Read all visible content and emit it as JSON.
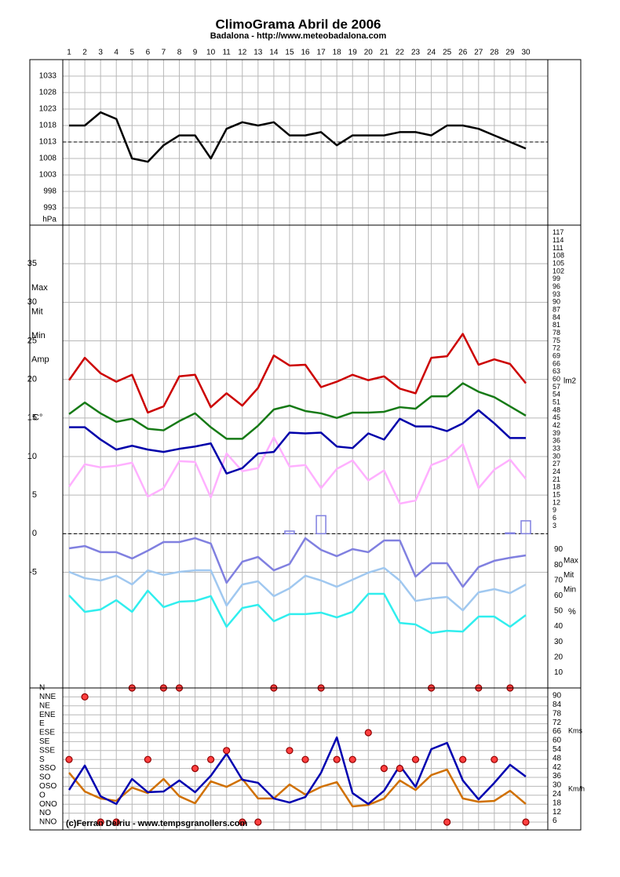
{
  "chart_data": [
    {
      "type": "line",
      "title": "ClimoGrama Abril de 2006",
      "subtitle": "Badalona - http://www.meteobadalona.com",
      "categories": [
        "1",
        "2",
        "3",
        "4",
        "5",
        "6",
        "7",
        "8",
        "9",
        "10",
        "11",
        "12",
        "13",
        "14",
        "15",
        "16",
        "17",
        "18",
        "19",
        "20",
        "21",
        "22",
        "23",
        "24",
        "25",
        "26",
        "27",
        "28",
        "29",
        "30"
      ],
      "y_label": "hPa",
      "ylim": [
        988,
        1038
      ],
      "yticks": [
        993,
        998,
        1003,
        1008,
        1013,
        1018,
        1023,
        1028,
        1033
      ],
      "mean_line": 1013,
      "color": "#000000",
      "grid": true,
      "values": [
        1018,
        1018,
        1022,
        1020,
        1008,
        1007,
        1012,
        1015,
        1015,
        1008,
        1017,
        1019,
        1018,
        1019,
        1015,
        1015,
        1016,
        1012,
        1015,
        1015,
        1015,
        1016,
        1016,
        1015,
        1018,
        1018,
        1017,
        1015,
        1013,
        1011
      ]
    },
    {
      "type": "line",
      "y_label": "C°",
      "ylim": [
        -20,
        40
      ],
      "yticks": [
        -5,
        0,
        5,
        10,
        15,
        20,
        25,
        30,
        35
      ],
      "zero_line": true,
      "grid": true,
      "series": [
        {
          "name": "Max",
          "color": "#cc0000",
          "values": [
            19.9,
            22.8,
            20.8,
            19.7,
            20.6,
            15.7,
            16.5,
            20.4,
            20.6,
            16.4,
            18.2,
            16.6,
            18.9,
            23.1,
            21.8,
            21.9,
            19.0,
            19.7,
            20.6,
            19.9,
            20.4,
            18.8,
            18.2,
            22.8,
            23.0,
            25.9,
            21.9,
            22.6,
            22.0,
            19.5
          ]
        },
        {
          "name": "Mit",
          "color": "#167a16",
          "values": [
            15.5,
            17.0,
            15.6,
            14.5,
            14.9,
            13.6,
            13.4,
            14.6,
            15.6,
            13.8,
            12.3,
            12.3,
            14.0,
            16.1,
            16.6,
            15.9,
            15.6,
            15.0,
            15.7,
            15.7,
            15.8,
            16.4,
            16.2,
            17.8,
            17.8,
            19.5,
            18.4,
            17.7,
            16.5,
            15.3
          ]
        },
        {
          "name": "Min",
          "color": "#0000aa",
          "values": [
            13.8,
            13.8,
            12.2,
            10.9,
            11.4,
            10.9,
            10.6,
            11.0,
            11.3,
            11.7,
            7.8,
            8.5,
            10.4,
            10.6,
            13.1,
            13.0,
            13.1,
            11.3,
            11.1,
            13.0,
            12.2,
            14.9,
            13.9,
            13.9,
            13.3,
            14.3,
            16.0,
            14.3,
            12.4,
            12.4
          ]
        },
        {
          "name": "Amp",
          "color": "#ffb0ff",
          "values": [
            6.1,
            9.0,
            8.6,
            8.8,
            9.2,
            4.8,
            5.9,
            9.4,
            9.3,
            4.7,
            10.4,
            8.1,
            8.5,
            12.5,
            8.7,
            8.9,
            5.9,
            8.4,
            9.5,
            6.9,
            8.2,
            3.9,
            4.3,
            8.9,
            9.7,
            11.6,
            5.9,
            8.3,
            9.6,
            7.1
          ]
        }
      ],
      "y2_label": "lm2",
      "y2lim": [
        0,
        120
      ],
      "y2ticks": [
        3,
        6,
        9,
        12,
        15,
        18,
        21,
        24,
        27,
        30,
        33,
        36,
        39,
        42,
        45,
        48,
        51,
        54,
        57,
        60,
        63,
        66,
        69,
        72,
        75,
        78,
        81,
        84,
        87,
        90,
        93,
        96,
        99,
        102,
        105,
        108,
        111,
        114,
        117
      ],
      "precipitation": {
        "color": "#8080e0",
        "values": [
          0,
          0,
          0,
          0,
          0,
          0,
          0,
          0,
          0,
          0,
          0,
          0,
          0,
          0,
          1,
          0,
          7,
          0,
          0,
          0,
          0,
          0,
          0,
          0,
          0,
          0,
          0,
          0,
          0.3,
          5
        ]
      },
      "y3_label": "%",
      "y3lim": [
        0,
        100
      ],
      "y3ticks": [
        10,
        20,
        30,
        40,
        50,
        60,
        70,
        80,
        90
      ],
      "humidity": [
        {
          "name": "Max",
          "color": "#8080e0",
          "values": [
            90.8,
            92.3,
            88.3,
            88.3,
            84.2,
            89.3,
            94.9,
            94.9,
            97.4,
            93.9,
            68.4,
            82.1,
            85.2,
            76.5,
            80.6,
            97.4,
            89.8,
            85.7,
            90.3,
            88.3,
            95.9,
            95.9,
            72.4,
            81.1,
            81.1,
            65.8,
            78.6,
            82.7,
            84.7,
            86.2
          ]
        },
        {
          "name": "Mit",
          "color": "#a0c8f0",
          "values": [
            75.5,
            71.4,
            69.9,
            73.0,
            67.3,
            76.5,
            73.5,
            75.5,
            76.5,
            76.5,
            53.6,
            67.3,
            69.4,
            59.7,
            64.8,
            73.0,
            69.9,
            65.8,
            70.4,
            75.0,
            78.1,
            69.9,
            56.6,
            58.2,
            59.2,
            50.5,
            62.2,
            64.3,
            61.7,
            67.3
          ]
        },
        {
          "name": "Min",
          "color": "#30eeee",
          "values": [
            60.2,
            49.5,
            51.0,
            57.1,
            49.5,
            63.3,
            52.6,
            56.1,
            56.6,
            59.7,
            39.8,
            52.0,
            54.1,
            43.4,
            48.0,
            48.0,
            49.0,
            45.9,
            49.5,
            61.2,
            61.2,
            42.3,
            41.3,
            35.7,
            37.2,
            36.7,
            46.4,
            46.4,
            39.8,
            47.4
          ]
        }
      ]
    },
    {
      "type": "line",
      "grid": true,
      "directions": [
        "N",
        "NNE",
        "NE",
        "ENE",
        "E",
        "ESE",
        "SE",
        "SSE",
        "S",
        "SSO",
        "SO",
        "OSO",
        "O",
        "ONO",
        "NO",
        "NNO"
      ],
      "dominant_direction": [
        "S",
        "NNE",
        "NNO",
        "NNO",
        "N",
        "S",
        "N",
        "N",
        "SSO",
        "S",
        "SSE",
        "NNO",
        "NNO",
        "N",
        "SSE",
        "S",
        "N",
        "S",
        "S",
        "ESE",
        "SSO",
        "SSO",
        "S",
        "N",
        "NNO",
        "S",
        "N",
        "S",
        "N",
        "NNO"
      ],
      "direction_color": "#ff4040",
      "y2lim": [
        0,
        90
      ],
      "y2ticks": [
        6,
        12,
        18,
        24,
        30,
        36,
        42,
        48,
        54,
        60,
        66,
        72,
        78,
        84,
        90
      ],
      "series": [
        {
          "name": "Kms",
          "color": "#0000b0",
          "values": [
            26.8,
            43.2,
            22.6,
            17.4,
            34.2,
            25.3,
            25.8,
            33.2,
            25.3,
            36.3,
            51.1,
            33.7,
            31.6,
            21.1,
            18.4,
            22.1,
            38.4,
            62.1,
            24.7,
            17.4,
            26.3,
            43.2,
            28.9,
            54.2,
            58.4,
            33.2,
            20.5,
            31.6,
            43.7,
            35.8
          ]
        },
        {
          "name": "Km/h",
          "color": "#d07000",
          "values": [
            38.4,
            25.8,
            21.1,
            19.5,
            28.4,
            24.7,
            34.2,
            22.6,
            17.9,
            32.6,
            28.9,
            34.2,
            21.1,
            21.1,
            30.5,
            23.7,
            28.9,
            32.1,
            15.8,
            16.8,
            21.1,
            33.2,
            26.8,
            36.8,
            40.5,
            21.1,
            18.9,
            19.5,
            26.3,
            17.4
          ]
        }
      ],
      "footer": "(c)Ferran Delriu - www.tempsgranollers.com"
    }
  ]
}
